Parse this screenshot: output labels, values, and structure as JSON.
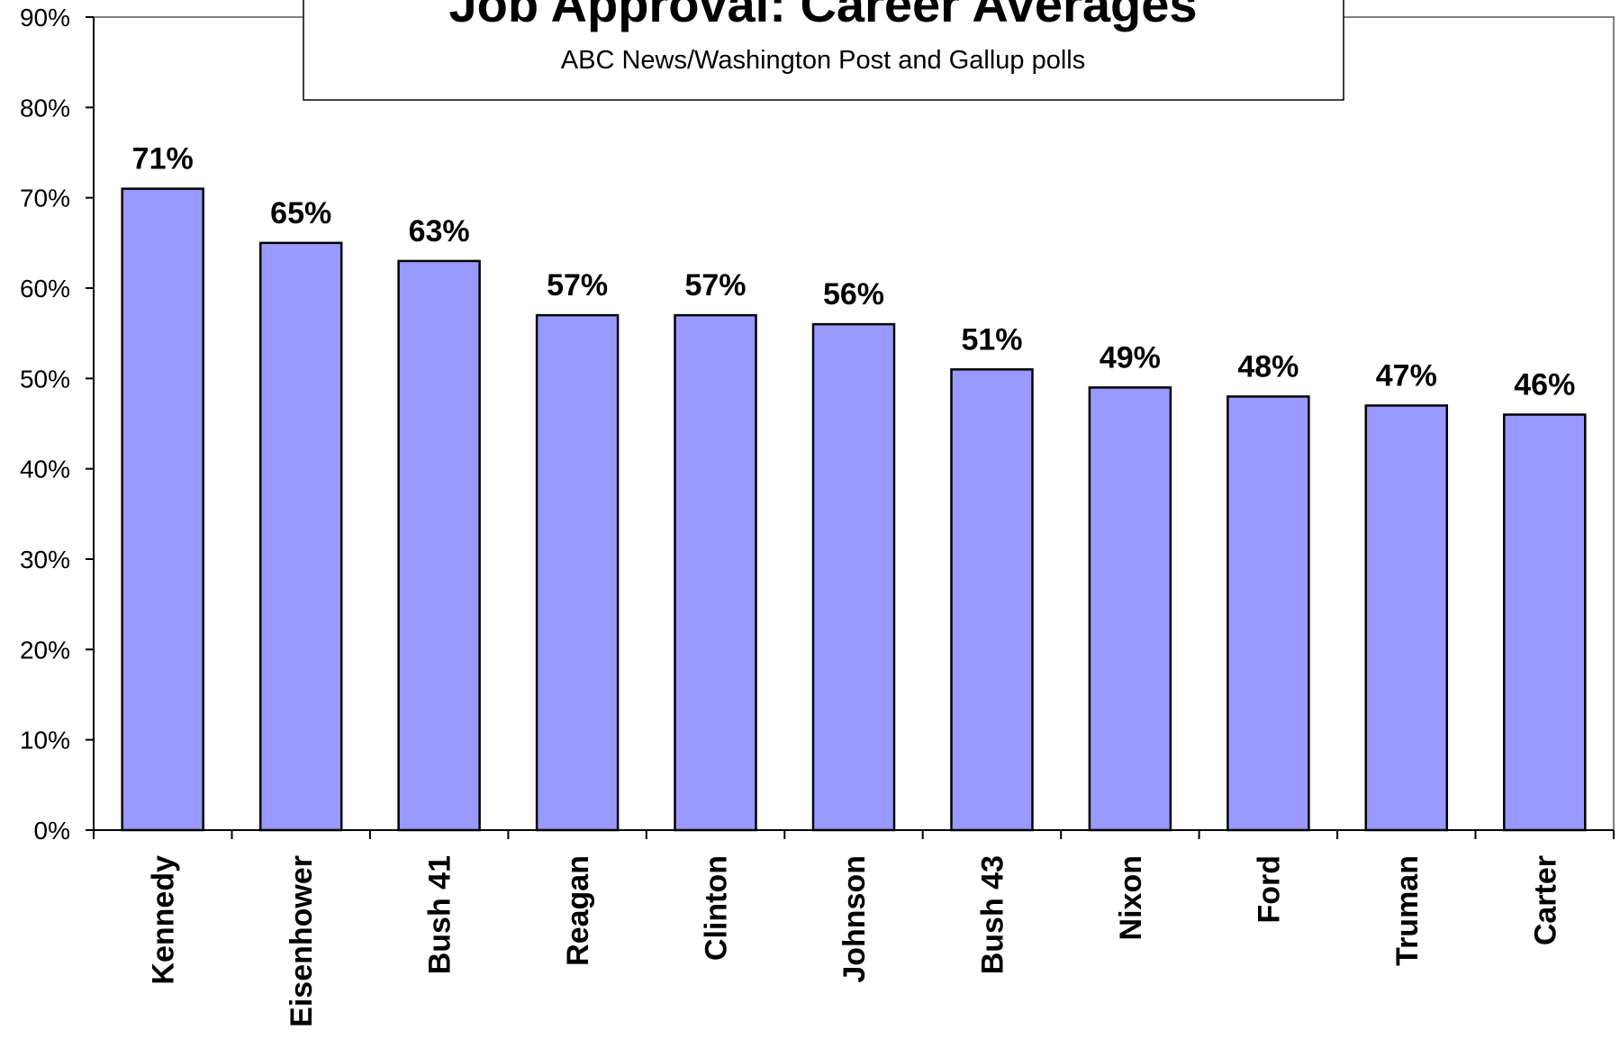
{
  "chart_data": {
    "type": "bar",
    "title": "Job Approval: Career Averages",
    "subtitle": "ABC News/Washington Post and Gallup polls",
    "xlabel": "",
    "ylabel": "",
    "categories": [
      "Kennedy",
      "Eisenhower",
      "Bush 41",
      "Reagan",
      "Clinton",
      "Johnson",
      "Bush 43",
      "Nixon",
      "Ford",
      "Truman",
      "Carter"
    ],
    "values": [
      71,
      65,
      63,
      57,
      57,
      56,
      51,
      49,
      48,
      47,
      46
    ],
    "data_labels": [
      "71%",
      "65%",
      "63%",
      "57%",
      "57%",
      "56%",
      "51%",
      "49%",
      "48%",
      "47%",
      "46%"
    ],
    "ylim": [
      0,
      90
    ],
    "yticks": [
      0,
      10,
      20,
      30,
      40,
      50,
      60,
      70,
      80,
      90
    ],
    "ytick_labels": [
      "0%",
      "10%",
      "20%",
      "30%",
      "40%",
      "50%",
      "60%",
      "70%",
      "80%",
      "90%"
    ],
    "bar_color": "#9999ff",
    "grid": false,
    "legend": "none"
  }
}
